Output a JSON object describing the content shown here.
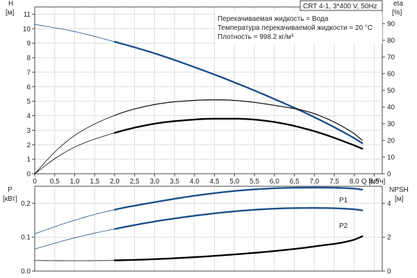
{
  "chart_data": [
    {
      "type": "line",
      "title": "CRT 4-1, 3*400 V, 50Hz",
      "info": [
        "Перекачиваемая жидкость = Вода",
        "Температура перекачиваемой жидкости = 20 °C",
        "Плотность = 998.2 кг/м³"
      ],
      "xlabel": "Q [м³/ч]",
      "xlim": [
        0,
        8.7
      ],
      "xticks": [
        "0",
        "0,5",
        "1,0",
        "1,5",
        "2,0",
        "2,5",
        "3,0",
        "3,5",
        "4,0",
        "4,5",
        "5,0",
        "5,5",
        "6,0",
        "6,5",
        "7,0",
        "7,5",
        "8,0",
        "8,5"
      ],
      "left_axis": {
        "label_line1": "H",
        "label_line2": "[м]",
        "ylim": [
          0,
          11.5
        ],
        "ticks": [
          "0",
          "1",
          "2",
          "3",
          "4",
          "5",
          "6",
          "7",
          "8",
          "9",
          "10",
          "11"
        ]
      },
      "right_axis": {
        "label_line1": "eta",
        "label_line2": "[%]",
        "ylim": [
          0,
          100
        ],
        "ticks": [
          "0",
          "10",
          "20",
          "30",
          "40",
          "50",
          "60",
          "70",
          "80",
          "90"
        ]
      },
      "series": [
        {
          "key": "H",
          "axis": "left",
          "color": "#1a4f8a",
          "x": [
            0,
            1,
            2,
            3,
            4,
            5,
            6,
            7,
            8,
            8.2
          ],
          "y": [
            10.3,
            9.8,
            9.1,
            8.3,
            7.35,
            6.3,
            5.15,
            3.9,
            2.45,
            2.1
          ]
        },
        {
          "key": "eta_thin",
          "axis": "right",
          "color": "#000000",
          "x": [
            0,
            0.5,
            1,
            2,
            3,
            4,
            4.5,
            5,
            6,
            7,
            8,
            8.2
          ],
          "y": [
            0,
            13,
            23,
            35,
            41.5,
            44,
            44.3,
            44,
            41,
            36,
            24,
            20
          ]
        },
        {
          "key": "eta_bold",
          "axis": "right",
          "color": "#000000",
          "x": [
            0,
            0.5,
            1,
            2,
            3,
            4,
            4.5,
            5,
            6,
            7,
            8,
            8.2
          ],
          "y": [
            0,
            9,
            16,
            24.5,
            30,
            32.5,
            33,
            33,
            31,
            25.5,
            17,
            15
          ]
        }
      ]
    },
    {
      "type": "line",
      "xlim": [
        0,
        8.7
      ],
      "left_axis": {
        "label_line1": "P",
        "label_line2": "[кВт]",
        "ylim": [
          0,
          0.25
        ],
        "ticks": [
          "0.0",
          "0.1",
          "0.2"
        ]
      },
      "right_axis": {
        "label_line1": "NPSH",
        "label_line2": "[м]",
        "ylim": [
          0,
          5
        ],
        "ticks": [
          "0",
          "2",
          "4"
        ]
      },
      "series": [
        {
          "key": "P1",
          "name": "P1",
          "axis": "left",
          "color": "#1a4f8a",
          "x": [
            0,
            1,
            2,
            3,
            4,
            5,
            6,
            7,
            8,
            8.2
          ],
          "y": [
            0.11,
            0.15,
            0.181,
            0.203,
            0.222,
            0.236,
            0.244,
            0.246,
            0.243,
            0.24
          ]
        },
        {
          "key": "P2",
          "name": "P2",
          "axis": "left",
          "color": "#1a4f8a",
          "x": [
            0,
            1,
            2,
            3,
            4,
            5,
            6,
            7,
            8,
            8.2
          ],
          "y": [
            0.065,
            0.098,
            0.124,
            0.146,
            0.163,
            0.176,
            0.184,
            0.186,
            0.182,
            0.179
          ]
        },
        {
          "key": "NPSH",
          "axis": "right",
          "color": "#000000",
          "x": [
            0,
            1,
            2,
            3,
            4,
            5,
            6,
            7,
            8,
            8.2
          ],
          "y": [
            0.62,
            0.61,
            0.63,
            0.7,
            0.82,
            0.98,
            1.18,
            1.45,
            1.85,
            2.05
          ]
        }
      ]
    }
  ]
}
